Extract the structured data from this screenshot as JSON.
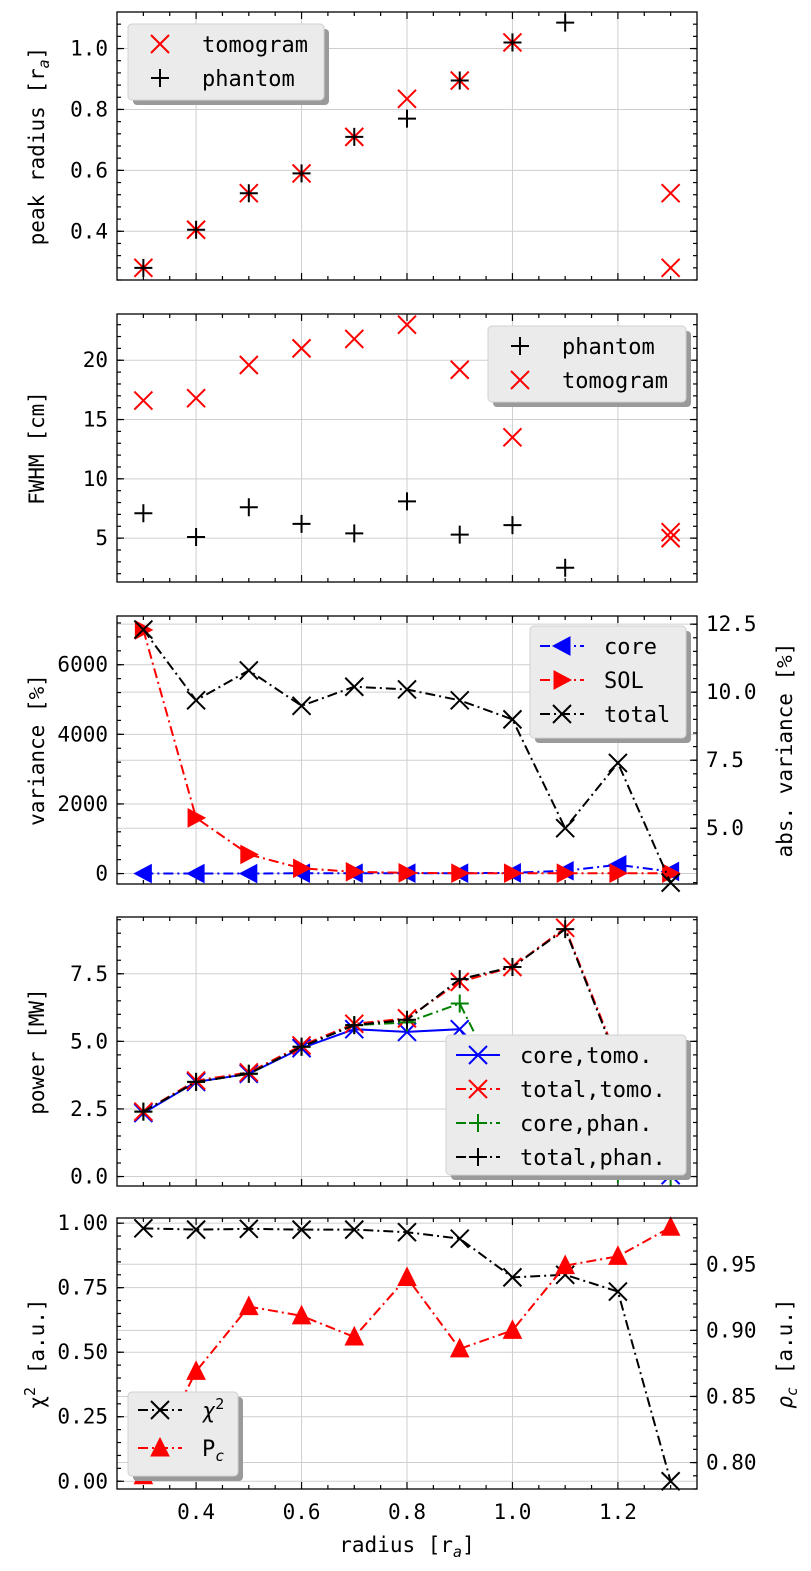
{
  "chart_data": [
    {
      "type": "scatter",
      "id": "peak",
      "ylabel": "peak radius [r_a]",
      "ylabel_main": "peak radius [r",
      "ylabel_sub": "a",
      "ylabel_end": "]",
      "xlim": [
        0.25,
        1.35
      ],
      "ylim": [
        0.24,
        1.12
      ],
      "yticks": [
        0.4,
        0.6,
        0.8,
        1.0
      ],
      "ytick_labels": [
        "0.4",
        "0.6",
        "0.8",
        "1.0"
      ],
      "grid": true,
      "legend_position": "top-left",
      "series": [
        {
          "name": "tomogram",
          "marker": "x",
          "color": "#ff0000",
          "x": [
            0.3,
            0.4,
            0.5,
            0.6,
            0.7,
            0.8,
            0.9,
            1.0,
            1.3,
            1.3
          ],
          "y": [
            0.28,
            0.405,
            0.525,
            0.59,
            0.71,
            0.835,
            0.895,
            1.02,
            0.525,
            0.28
          ]
        },
        {
          "name": "phantom",
          "marker": "+",
          "color": "#000000",
          "x": [
            0.3,
            0.4,
            0.5,
            0.6,
            0.7,
            0.8,
            0.9,
            1.0,
            1.1
          ],
          "y": [
            0.28,
            0.405,
            0.525,
            0.59,
            0.71,
            0.77,
            0.895,
            1.02,
            1.085
          ]
        }
      ]
    },
    {
      "type": "scatter",
      "id": "fwhm",
      "ylabel": "FWHM [cm]",
      "xlim": [
        0.25,
        1.35
      ],
      "ylim": [
        1.3,
        23.9
      ],
      "yticks": [
        5,
        10,
        15,
        20
      ],
      "ytick_labels": [
        "5",
        "10",
        "15",
        "20"
      ],
      "grid": true,
      "legend_position": "top-right",
      "series": [
        {
          "name": "phantom",
          "marker": "+",
          "color": "#000000",
          "x": [
            0.3,
            0.4,
            0.5,
            0.6,
            0.7,
            0.8,
            0.9,
            1.0,
            1.1
          ],
          "y": [
            7.1,
            5.1,
            7.6,
            6.2,
            5.4,
            8.1,
            5.3,
            6.1,
            2.5
          ]
        },
        {
          "name": "tomogram",
          "marker": "x",
          "color": "#ff0000",
          "x": [
            0.3,
            0.4,
            0.5,
            0.6,
            0.7,
            0.8,
            0.9,
            1.0,
            1.3,
            1.3
          ],
          "y": [
            16.6,
            16.8,
            19.6,
            21.0,
            21.8,
            23.0,
            19.2,
            13.5,
            5.5,
            5.0
          ]
        }
      ]
    },
    {
      "type": "line",
      "id": "variance",
      "ylabel": "variance [%]",
      "ylabel_right": "abs. variance [%]",
      "xlim": [
        0.25,
        1.35
      ],
      "ylim": [
        -300,
        7400
      ],
      "ylim_right": [
        2.95,
        12.8
      ],
      "yticks": [
        0,
        2000,
        4000,
        6000
      ],
      "ytick_labels": [
        "0",
        "2000",
        "4000",
        "6000"
      ],
      "yticks_right": [
        5.0,
        7.5,
        10.0,
        12.5
      ],
      "ytick_labels_right": [
        "5.0",
        "7.5",
        "10.0",
        "12.5"
      ],
      "grid": true,
      "legend_position": "top-right",
      "series": [
        {
          "name": "core",
          "axis": "left",
          "marker": "tri-left",
          "color": "#0000ff",
          "linestyle": "dashdot",
          "x": [
            0.3,
            0.4,
            0.5,
            0.6,
            0.7,
            0.8,
            0.9,
            1.0,
            1.1,
            1.2,
            1.3
          ],
          "y": [
            0,
            0,
            0,
            10,
            10,
            10,
            10,
            20,
            80,
            250,
            60
          ]
        },
        {
          "name": "SOL",
          "axis": "left",
          "marker": "tri-right",
          "color": "#ff0000",
          "linestyle": "dashdot",
          "x": [
            0.3,
            0.4,
            0.5,
            0.6,
            0.7,
            0.8,
            0.9,
            1.0,
            1.1,
            1.2,
            1.3
          ],
          "y": [
            7000,
            1600,
            550,
            150,
            50,
            20,
            10,
            10,
            10,
            10,
            10
          ]
        },
        {
          "name": "total",
          "axis": "right",
          "marker": "x",
          "color": "#000000",
          "linestyle": "dashdot",
          "x": [
            0.3,
            0.4,
            0.5,
            0.6,
            0.7,
            0.8,
            0.9,
            1.0,
            1.1,
            1.2,
            1.3
          ],
          "y": [
            12.3,
            9.7,
            10.8,
            9.5,
            10.2,
            10.1,
            9.7,
            9.0,
            5.0,
            7.4,
            3.0
          ]
        }
      ]
    },
    {
      "type": "line",
      "id": "power",
      "ylabel": "power [MW]",
      "xlim": [
        0.25,
        1.35
      ],
      "ylim": [
        -0.35,
        9.6
      ],
      "yticks": [
        0.0,
        2.5,
        5.0,
        7.5
      ],
      "ytick_labels": [
        "0.0",
        "2.5",
        "5.0",
        "7.5"
      ],
      "grid": true,
      "legend_position": "center-right",
      "series": [
        {
          "name": "core,tomo.",
          "marker": "x",
          "color": "#0000ff",
          "linestyle": "solid",
          "x": [
            0.3,
            0.4,
            0.5,
            0.6,
            0.7,
            0.8,
            0.9,
            1.0,
            1.1,
            1.2,
            1.3
          ],
          "y": [
            2.35,
            3.5,
            3.8,
            4.75,
            5.45,
            5.35,
            5.45,
            2.75,
            1.15,
            0.65,
            0.05
          ]
        },
        {
          "name": "total,tomo.",
          "marker": "x",
          "color": "#ff0000",
          "linestyle": "dashdot",
          "x": [
            0.3,
            0.4,
            0.5,
            0.6,
            0.7,
            0.8,
            0.9,
            1.0,
            1.1,
            1.2,
            1.3
          ],
          "y": [
            2.4,
            3.55,
            3.85,
            4.85,
            5.65,
            5.85,
            7.2,
            7.75,
            9.2,
            4.3,
            0.7
          ]
        },
        {
          "name": "core,phan.",
          "marker": "+",
          "color": "#008000",
          "linestyle": "dashdot",
          "x": [
            0.3,
            0.4,
            0.5,
            0.6,
            0.7,
            0.8,
            0.9,
            1.0,
            1.1,
            1.2,
            1.3
          ],
          "y": [
            2.4,
            3.5,
            3.8,
            4.8,
            5.6,
            5.7,
            6.4,
            2.5,
            0.5,
            0.1,
            0.0
          ]
        },
        {
          "name": "total,phan.",
          "marker": "+",
          "color": "#000000",
          "linestyle": "dashdot",
          "x": [
            0.3,
            0.4,
            0.5,
            0.6,
            0.7,
            0.8,
            0.9,
            1.0,
            1.1,
            1.2,
            1.3
          ],
          "y": [
            2.4,
            3.5,
            3.8,
            4.8,
            5.6,
            5.8,
            7.3,
            7.75,
            9.15,
            4.2,
            0.65
          ]
        }
      ]
    },
    {
      "type": "line",
      "id": "chi",
      "xlabel": "radius [r_a]",
      "xlabel_main": "radius [r",
      "xlabel_sub": "a",
      "xlabel_end": "]",
      "xticks": [
        0.4,
        0.6,
        0.8,
        1.0,
        1.2
      ],
      "xtick_labels": [
        "0.4",
        "0.6",
        "0.8",
        "1.0",
        "1.2"
      ],
      "ylabel": "χ² [a.u.]",
      "ylabel_main": "χ",
      "ylabel_sup": "2",
      "ylabel_end": " [a.u.]",
      "ylabel_right": "ρ_c [a.u.]",
      "ylabel_right_main": "ρ",
      "ylabel_right_sub": "c",
      "ylabel_right_end": " [a.u.]",
      "xlim": [
        0.25,
        1.35
      ],
      "ylim": [
        -0.03,
        1.02
      ],
      "ylim_right": [
        0.78,
        0.985
      ],
      "yticks": [
        0.0,
        0.25,
        0.5,
        0.75,
        1.0
      ],
      "ytick_labels": [
        "0.00",
        "0.25",
        "0.50",
        "0.75",
        "1.00"
      ],
      "yticks_right": [
        0.8,
        0.85,
        0.9,
        0.95
      ],
      "ytick_labels_right": [
        "0.80",
        "0.85",
        "0.90",
        "0.95"
      ],
      "grid": true,
      "legend_position": "bottom-left",
      "series": [
        {
          "name": "χ²",
          "name_main": "χ",
          "name_sup": "2",
          "axis": "left",
          "marker": "x",
          "color": "#000000",
          "linestyle": "dashdot",
          "x": [
            0.3,
            0.4,
            0.5,
            0.6,
            0.7,
            0.8,
            0.9,
            1.0,
            1.1,
            1.2,
            1.3
          ],
          "y": [
            0.98,
            0.975,
            0.978,
            0.975,
            0.975,
            0.965,
            0.94,
            0.79,
            0.8,
            0.735,
            0.0
          ]
        },
        {
          "name": "P_c",
          "name_main": "P",
          "name_sub": "c",
          "axis": "right",
          "marker": "tri-up",
          "color": "#ff0000",
          "linestyle": "dashdot",
          "x": [
            0.3,
            0.4,
            0.5,
            0.6,
            0.7,
            0.8,
            0.9,
            1.0,
            1.1,
            1.2,
            1.3
          ],
          "y": [
            0.79,
            0.869,
            0.918,
            0.911,
            0.895,
            0.94,
            0.886,
            0.9,
            0.949,
            0.956,
            0.978
          ]
        }
      ]
    }
  ]
}
